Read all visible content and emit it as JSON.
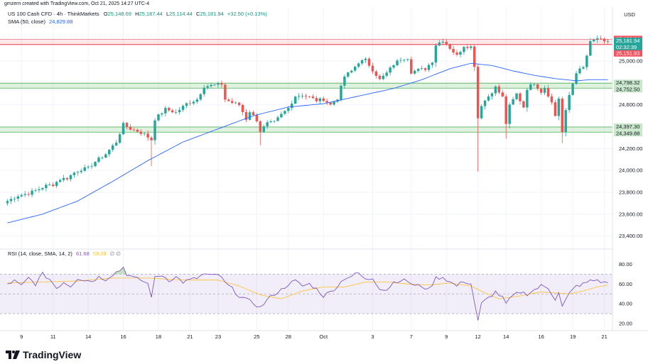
{
  "credit": "gmzern created with TradingView.com, Oct 21, 2025 14:27 UTC-4",
  "brand": {
    "name": "TradingView",
    "logo_icon": "tradingview-logo-icon"
  },
  "header": {
    "symbol": "US 100 Cash CFD · 4h · ThinkMarkets",
    "ohlc": [
      {
        "key": "O",
        "value": "25,148.69"
      },
      {
        "key": "H",
        "value": "25,187.44"
      },
      {
        "key": "L",
        "value": "25,114.44"
      },
      {
        "key": "C",
        "value": "25,181.94"
      }
    ],
    "change": "+32.50 (+0.13%)",
    "sma_label": "SMA (50, close)",
    "sma_value": "24,829.88"
  },
  "currency": "USD",
  "colors": {
    "up": "#26a69a",
    "down": "#ef5350",
    "sma": "#2962ff",
    "rsi": "#7e57c2",
    "rsi_ma": "#fbc02d",
    "zone": "#4caf50",
    "resistance": "#f23645"
  },
  "chart_data": [
    {
      "type": "candlestick",
      "y_ticks": [
        23400,
        23600,
        23800,
        24000,
        24200,
        24400,
        24600,
        24800,
        25000
      ],
      "ylim": [
        23300,
        25280
      ],
      "x_tick_labels": [
        "9",
        "11",
        "14",
        "16",
        "18",
        "21",
        "23",
        "25",
        "28",
        "Oct",
        "3",
        "7",
        "9",
        "12",
        "14",
        "16",
        "19",
        "21"
      ],
      "x_tick_bars": [
        4,
        13,
        23,
        33,
        43,
        52,
        60,
        71,
        80,
        90,
        104,
        115,
        125,
        134,
        142,
        152,
        161,
        170
      ],
      "bar_count": 172,
      "anchors": [
        [
          0,
          23720
        ],
        [
          3,
          23770
        ],
        [
          6,
          23790
        ],
        [
          9,
          23830
        ],
        [
          11,
          23860
        ],
        [
          13,
          23870
        ],
        [
          15,
          23920
        ],
        [
          17,
          23930
        ],
        [
          19,
          23980
        ],
        [
          21,
          24010
        ],
        [
          23,
          24020
        ],
        [
          25,
          24080
        ],
        [
          28,
          24150
        ],
        [
          31,
          24260
        ],
        [
          33,
          24420
        ],
        [
          35,
          24380
        ],
        [
          37,
          24360
        ],
        [
          39,
          24330
        ],
        [
          41,
          24280
        ],
        [
          42,
          24470
        ],
        [
          45,
          24560
        ],
        [
          48,
          24530
        ],
        [
          51,
          24610
        ],
        [
          54,
          24650
        ],
        [
          56,
          24770
        ],
        [
          59,
          24780
        ],
        [
          61,
          24790
        ],
        [
          62,
          24650
        ],
        [
          64,
          24620
        ],
        [
          66,
          24600
        ],
        [
          68,
          24470
        ],
        [
          69,
          24540
        ],
        [
          71,
          24460
        ],
        [
          72,
          24360
        ],
        [
          74,
          24430
        ],
        [
          76,
          24440
        ],
        [
          78,
          24510
        ],
        [
          80,
          24570
        ],
        [
          82,
          24680
        ],
        [
          84,
          24690
        ],
        [
          86,
          24670
        ],
        [
          88,
          24640
        ],
        [
          90,
          24650
        ],
        [
          92,
          24600
        ],
        [
          94,
          24660
        ],
        [
          96,
          24860
        ],
        [
          98,
          24910
        ],
        [
          100,
          24990
        ],
        [
          102,
          25010
        ],
        [
          104,
          24920
        ],
        [
          106,
          24830
        ],
        [
          108,
          24890
        ],
        [
          110,
          24970
        ],
        [
          112,
          25020
        ],
        [
          114,
          25030
        ],
        [
          115,
          24900
        ],
        [
          117,
          24920
        ],
        [
          119,
          24930
        ],
        [
          121,
          25000
        ],
        [
          122,
          25150
        ],
        [
          124,
          25190
        ],
        [
          126,
          25120
        ],
        [
          128,
          25050
        ],
        [
          130,
          25140
        ],
        [
          132,
          25130
        ],
        [
          133,
          24960
        ],
        [
          134,
          24480
        ],
        [
          135,
          24600
        ],
        [
          137,
          24680
        ],
        [
          139,
          24760
        ],
        [
          141,
          24670
        ],
        [
          142,
          24430
        ],
        [
          143,
          24590
        ],
        [
          145,
          24700
        ],
        [
          147,
          24580
        ],
        [
          148,
          24750
        ],
        [
          150,
          24800
        ],
        [
          152,
          24720
        ],
        [
          153,
          24760
        ],
        [
          155,
          24620
        ],
        [
          156,
          24500
        ],
        [
          157,
          24660
        ],
        [
          158,
          24350
        ],
        [
          159,
          24540
        ],
        [
          160,
          24690
        ],
        [
          162,
          24900
        ],
        [
          164,
          24940
        ],
        [
          165,
          25050
        ],
        [
          166,
          25170
        ],
        [
          168,
          25210
        ],
        [
          170,
          25170
        ],
        [
          171,
          25182
        ]
      ],
      "sma_50": [
        [
          0,
          23520
        ],
        [
          10,
          23600
        ],
        [
          20,
          23720
        ],
        [
          30,
          23900
        ],
        [
          40,
          24090
        ],
        [
          50,
          24260
        ],
        [
          60,
          24380
        ],
        [
          70,
          24500
        ],
        [
          80,
          24580
        ],
        [
          90,
          24610
        ],
        [
          100,
          24680
        ],
        [
          110,
          24750
        ],
        [
          118,
          24830
        ],
        [
          126,
          24930
        ],
        [
          132,
          24980
        ],
        [
          138,
          24960
        ],
        [
          144,
          24910
        ],
        [
          150,
          24870
        ],
        [
          156,
          24840
        ],
        [
          162,
          24820
        ],
        [
          166,
          24830
        ],
        [
          171,
          24830
        ]
      ],
      "sma_value": 24829.88,
      "resistance_lines": [
        25199.64,
        25151.93
      ],
      "zones": [
        {
          "high": 24798.32,
          "low": 24752.5,
          "labels": [
            "24,798.32",
            "24,752.50"
          ]
        },
        {
          "high": 24397.3,
          "low": 24349.88,
          "labels": [
            "24,397.30",
            "24,349.88"
          ]
        }
      ],
      "last_price": {
        "label": "25,181.94",
        "countdown": "02:32:39",
        "value": 25181.94
      },
      "top_tags": [
        {
          "label": "25,199.64",
          "value": 25199.64
        },
        {
          "label": "25,151.93",
          "value": 25151.93
        }
      ]
    },
    {
      "type": "line",
      "title": "RSI (14, close, SMA, 14, 2)",
      "rsi_value": "61.68",
      "ma_value": "59.28",
      "extra": "∅ ∅",
      "y_ticks": [
        20,
        40,
        60,
        80
      ],
      "ylim": [
        15,
        86
      ],
      "band": [
        30,
        70
      ],
      "midline": 50,
      "rsi": [
        [
          0,
          60
        ],
        [
          2,
          63
        ],
        [
          4,
          58
        ],
        [
          6,
          66
        ],
        [
          8,
          60
        ],
        [
          10,
          70
        ],
        [
          12,
          65
        ],
        [
          14,
          56
        ],
        [
          16,
          62
        ],
        [
          18,
          58
        ],
        [
          20,
          66
        ],
        [
          22,
          64
        ],
        [
          24,
          63
        ],
        [
          26,
          67
        ],
        [
          28,
          65
        ],
        [
          30,
          70
        ],
        [
          32,
          74
        ],
        [
          33,
          77
        ],
        [
          34,
          70
        ],
        [
          36,
          66
        ],
        [
          38,
          64
        ],
        [
          40,
          60
        ],
        [
          41,
          48
        ],
        [
          42,
          66
        ],
        [
          44,
          69
        ],
        [
          46,
          64
        ],
        [
          48,
          67
        ],
        [
          50,
          62
        ],
        [
          52,
          64
        ],
        [
          54,
          66
        ],
        [
          56,
          70
        ],
        [
          58,
          68
        ],
        [
          60,
          70
        ],
        [
          62,
          61
        ],
        [
          64,
          55
        ],
        [
          66,
          48
        ],
        [
          68,
          44
        ],
        [
          70,
          41
        ],
        [
          72,
          36
        ],
        [
          74,
          44
        ],
        [
          76,
          50
        ],
        [
          78,
          54
        ],
        [
          80,
          60
        ],
        [
          82,
          63
        ],
        [
          84,
          58
        ],
        [
          86,
          60
        ],
        [
          88,
          55
        ],
        [
          90,
          48
        ],
        [
          92,
          52
        ],
        [
          94,
          58
        ],
        [
          96,
          66
        ],
        [
          98,
          68
        ],
        [
          100,
          71
        ],
        [
          102,
          64
        ],
        [
          104,
          66
        ],
        [
          106,
          56
        ],
        [
          108,
          54
        ],
        [
          110,
          62
        ],
        [
          112,
          64
        ],
        [
          114,
          63
        ],
        [
          116,
          58
        ],
        [
          118,
          58
        ],
        [
          120,
          54
        ],
        [
          122,
          66
        ],
        [
          124,
          67
        ],
        [
          126,
          62
        ],
        [
          128,
          58
        ],
        [
          130,
          63
        ],
        [
          132,
          60
        ],
        [
          133,
          42
        ],
        [
          134,
          22
        ],
        [
          135,
          40
        ],
        [
          137,
          46
        ],
        [
          139,
          52
        ],
        [
          141,
          46
        ],
        [
          142,
          40
        ],
        [
          144,
          48
        ],
        [
          146,
          52
        ],
        [
          148,
          50
        ],
        [
          150,
          54
        ],
        [
          152,
          58
        ],
        [
          154,
          56
        ],
        [
          156,
          45
        ],
        [
          157,
          52
        ],
        [
          158,
          37
        ],
        [
          160,
          50
        ],
        [
          162,
          58
        ],
        [
          164,
          60
        ],
        [
          166,
          63
        ],
        [
          168,
          64
        ],
        [
          170,
          61
        ],
        [
          171,
          62
        ]
      ],
      "rsi_ma": [
        [
          0,
          61
        ],
        [
          10,
          62
        ],
        [
          20,
          63
        ],
        [
          30,
          66
        ],
        [
          40,
          66
        ],
        [
          50,
          64
        ],
        [
          60,
          64
        ],
        [
          66,
          58
        ],
        [
          72,
          49
        ],
        [
          78,
          45
        ],
        [
          84,
          53
        ],
        [
          90,
          57
        ],
        [
          96,
          57
        ],
        [
          102,
          62
        ],
        [
          108,
          62
        ],
        [
          114,
          60
        ],
        [
          120,
          59
        ],
        [
          126,
          61
        ],
        [
          132,
          58
        ],
        [
          136,
          51
        ],
        [
          140,
          45
        ],
        [
          146,
          48
        ],
        [
          152,
          52
        ],
        [
          156,
          51
        ],
        [
          160,
          50
        ],
        [
          164,
          53
        ],
        [
          168,
          57
        ],
        [
          171,
          59
        ]
      ]
    }
  ]
}
